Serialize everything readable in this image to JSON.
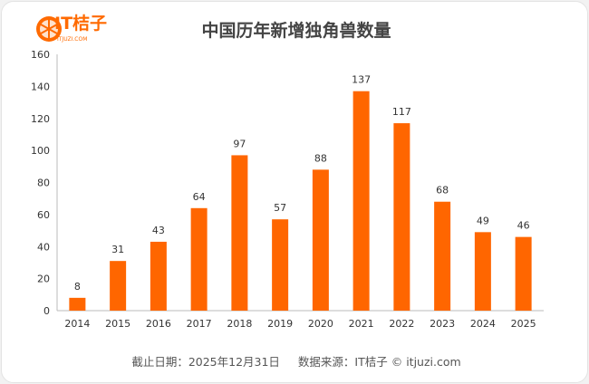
{
  "logo": {
    "text": "IT桔子",
    "sub": "ITJUZI.COM"
  },
  "chart_data": {
    "type": "bar",
    "title": "中国历年新增独角兽数量",
    "categories": [
      "2014",
      "2015",
      "2016",
      "2017",
      "2018",
      "2019",
      "2020",
      "2021",
      "2022",
      "2023",
      "2024",
      "2025"
    ],
    "values": [
      8,
      31,
      43,
      64,
      97,
      57,
      88,
      137,
      117,
      68,
      49,
      46
    ],
    "yticks": [
      0,
      20,
      40,
      60,
      80,
      100,
      120,
      140,
      160
    ],
    "ylim": [
      0,
      160
    ],
    "grid": false,
    "bar_color": "#ff6600",
    "xlabel": "",
    "ylabel": ""
  },
  "footer": {
    "date": "截止日期：2025年12月31日",
    "source": "数据来源：IT桔子 © itjuzi.com"
  }
}
